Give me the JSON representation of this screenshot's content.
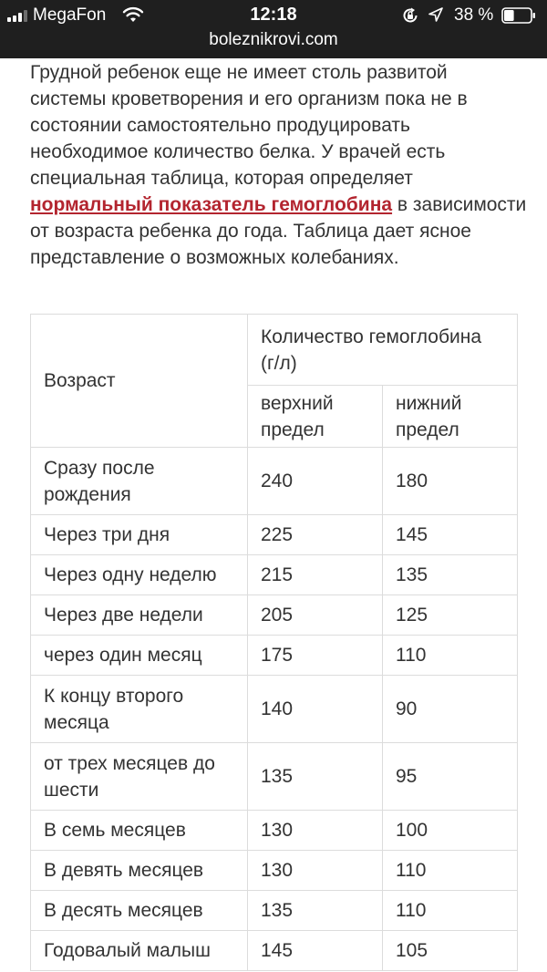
{
  "status_bar": {
    "carrier": "MegaFon",
    "time": "12:18",
    "battery_percent": "38 %",
    "battery_level": 0.38,
    "signal_icon": "cellular-signal-icon",
    "wifi_icon": "wifi-icon",
    "rotation_lock_icon": "rotation-lock-icon",
    "location_icon": "location-arrow-icon",
    "battery_icon": "battery-icon"
  },
  "browser": {
    "url": "boleznikrovi.com"
  },
  "article": {
    "text_before_link": "Грудной ребенок еще не имеет столь развитой системы кроветворения и его организм пока не в состоянии самостоятельно продуцировать необходимое количество белка. У врачей есть специальная таблица, которая определяет ",
    "link_text": "нормальный показатель гемоглобина",
    "text_after_link": " в зависимости от возраста ребенка до года. Таблица дает ясное представление о возможных колебаниях.",
    "link_color": "#b3252f"
  },
  "table": {
    "age_header": "Возраст",
    "amount_header": "Количество гемоглобина (г/л)",
    "upper_header": "верхний предел",
    "lower_header": "нижний предел",
    "rows": [
      {
        "age": "Сразу после рождения",
        "upper": "240",
        "lower": "180"
      },
      {
        "age": "Через три дня",
        "upper": "225",
        "lower": "145"
      },
      {
        "age": "Через одну неделю",
        "upper": "215",
        "lower": "135"
      },
      {
        "age": "Через две недели",
        "upper": "205",
        "lower": "125"
      },
      {
        "age": "через один месяц",
        "upper": "175",
        "lower": "110"
      },
      {
        "age": "К концу второго месяца",
        "upper": "140",
        "lower": "90"
      },
      {
        "age": "от трех месяцев до шести",
        "upper": "135",
        "lower": "95"
      },
      {
        "age": "В семь месяцев",
        "upper": "130",
        "lower": "100"
      },
      {
        "age": "В девять месяцев",
        "upper": "130",
        "lower": "110"
      },
      {
        "age": "В десять месяцев",
        "upper": "135",
        "lower": "110"
      },
      {
        "age": "Годовалый малыш",
        "upper": "145",
        "lower": "105"
      }
    ]
  }
}
